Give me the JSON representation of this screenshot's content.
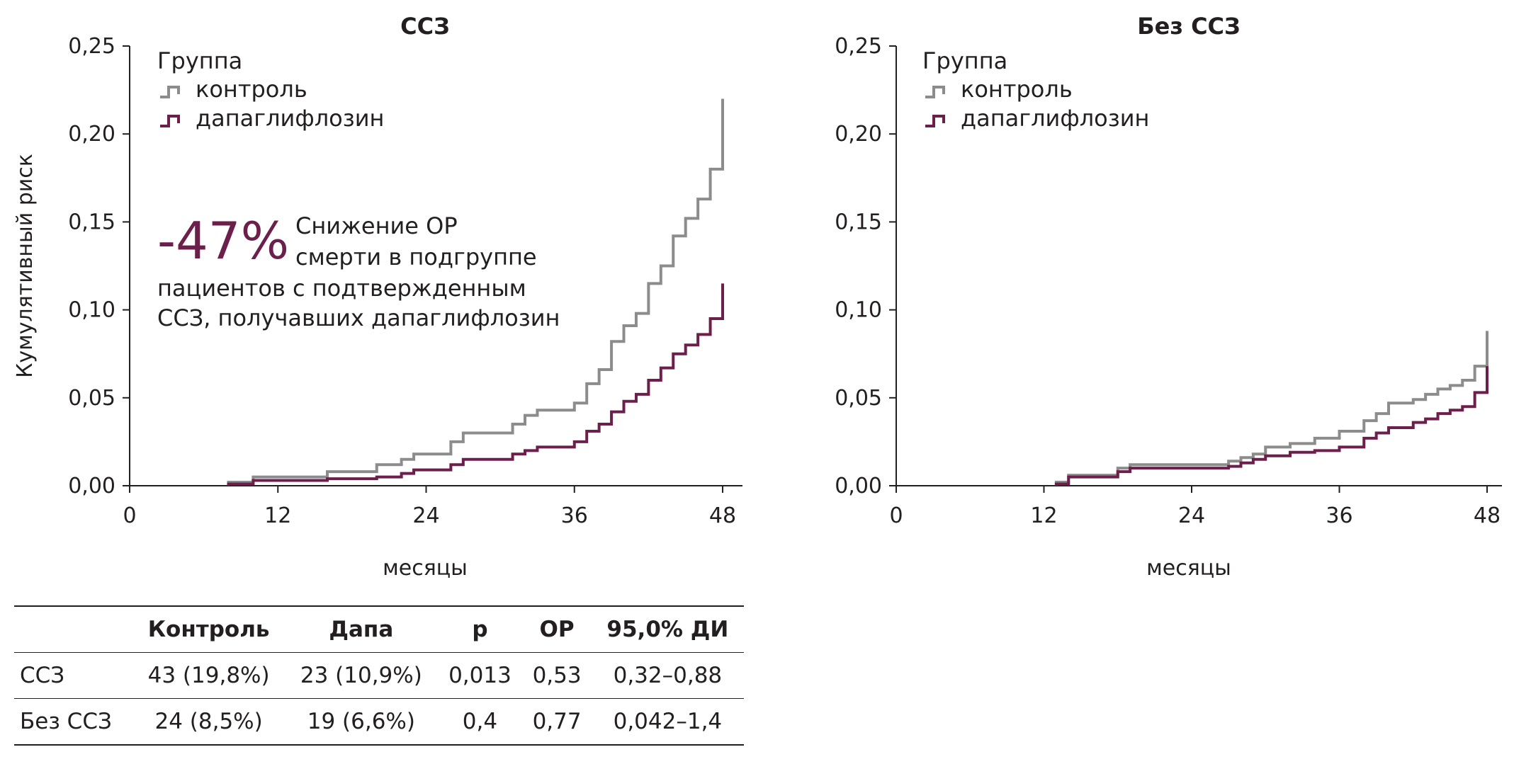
{
  "chart_data": [
    {
      "type": "line",
      "subtype": "step",
      "title": "ССЗ",
      "xlabel": "месяцы",
      "ylabel": "Кумулятивный риск",
      "xlim": [
        0,
        50
      ],
      "ylim": [
        0,
        0.25
      ],
      "xticks": [
        0,
        12,
        24,
        36,
        48
      ],
      "yticks": [
        "0,00",
        "0,05",
        "0,10",
        "0,15",
        "0,20",
        "0,25"
      ],
      "ytick_values": [
        0,
        0.05,
        0.1,
        0.15,
        0.2,
        0.25
      ],
      "legend": {
        "title": "Группа",
        "placement": "top-left",
        "entries": [
          "контроль",
          "дапаглифлозин"
        ]
      },
      "annotation": {
        "big": "-47%",
        "line1": "Снижение ОР",
        "line2": "смерти в подгруппе",
        "line3": "пациентов с подтвержденным",
        "line4": "ССЗ, получавших дапаглифлозин"
      },
      "series": [
        {
          "name": "контроль",
          "color": "#8c8c8c",
          "x": [
            8,
            10,
            16,
            20,
            22,
            23,
            26,
            27,
            31,
            32,
            33,
            36,
            37,
            38,
            39,
            40,
            41,
            42,
            43,
            44,
            45,
            46,
            47,
            48
          ],
          "y": [
            0.002,
            0.005,
            0.008,
            0.012,
            0.015,
            0.018,
            0.025,
            0.03,
            0.035,
            0.04,
            0.043,
            0.047,
            0.058,
            0.066,
            0.082,
            0.091,
            0.098,
            0.115,
            0.125,
            0.142,
            0.152,
            0.163,
            0.18,
            0.22
          ]
        },
        {
          "name": "дапаглифлозин",
          "color": "#6d1f4c",
          "x": [
            8,
            10,
            16,
            20,
            22,
            23,
            26,
            27,
            31,
            32,
            33,
            36,
            37,
            38,
            39,
            40,
            41,
            42,
            43,
            44,
            45,
            46,
            47,
            48
          ],
          "y": [
            0.001,
            0.003,
            0.004,
            0.005,
            0.007,
            0.009,
            0.012,
            0.015,
            0.018,
            0.02,
            0.022,
            0.025,
            0.031,
            0.035,
            0.042,
            0.048,
            0.052,
            0.06,
            0.067,
            0.075,
            0.08,
            0.086,
            0.095,
            0.115
          ]
        }
      ]
    },
    {
      "type": "line",
      "subtype": "step",
      "title": "Без ССЗ",
      "xlabel": "месяцы",
      "ylabel": "",
      "xlim": [
        0,
        50
      ],
      "ylim": [
        0,
        0.25
      ],
      "xticks": [
        0,
        12,
        24,
        36,
        48
      ],
      "yticks": [
        "0,00",
        "0,05",
        "0,10",
        "0,15",
        "0,20",
        "0,25"
      ],
      "ytick_values": [
        0,
        0.05,
        0.1,
        0.15,
        0.2,
        0.25
      ],
      "legend": {
        "title": "Группа",
        "placement": "top-left",
        "entries": [
          "контроль",
          "дапаглифлозин"
        ]
      },
      "series": [
        {
          "name": "контроль",
          "color": "#8c8c8c",
          "x": [
            13,
            14,
            18,
            19,
            27,
            28,
            29,
            30,
            32,
            34,
            36,
            38,
            39,
            40,
            42,
            43,
            44,
            45,
            46,
            47,
            48
          ],
          "y": [
            0.002,
            0.006,
            0.01,
            0.012,
            0.014,
            0.016,
            0.018,
            0.022,
            0.024,
            0.027,
            0.031,
            0.037,
            0.041,
            0.047,
            0.049,
            0.052,
            0.055,
            0.057,
            0.06,
            0.068,
            0.088
          ]
        },
        {
          "name": "дапаглифлозин",
          "color": "#6d1f4c",
          "x": [
            13,
            14,
            18,
            19,
            27,
            28,
            29,
            30,
            32,
            34,
            36,
            38,
            39,
            40,
            42,
            43,
            44,
            45,
            46,
            47,
            48
          ],
          "y": [
            0.001,
            0.005,
            0.008,
            0.01,
            0.011,
            0.013,
            0.015,
            0.017,
            0.019,
            0.02,
            0.022,
            0.027,
            0.03,
            0.033,
            0.036,
            0.038,
            0.041,
            0.043,
            0.045,
            0.053,
            0.068
          ]
        }
      ]
    }
  ],
  "table": {
    "headers": [
      "",
      "Контроль",
      "Дапа",
      "p",
      "ОР",
      "95,0% ДИ"
    ],
    "rows": [
      [
        "ССЗ",
        "43 (19,8%)",
        "23 (10,9%)",
        "0,013",
        "0,53",
        "0,32–0,88"
      ],
      [
        "Без ССЗ",
        "24 (8,5%)",
        "19 (6,6%)",
        "0,4",
        "0,77",
        "0,042–1,4"
      ]
    ]
  }
}
